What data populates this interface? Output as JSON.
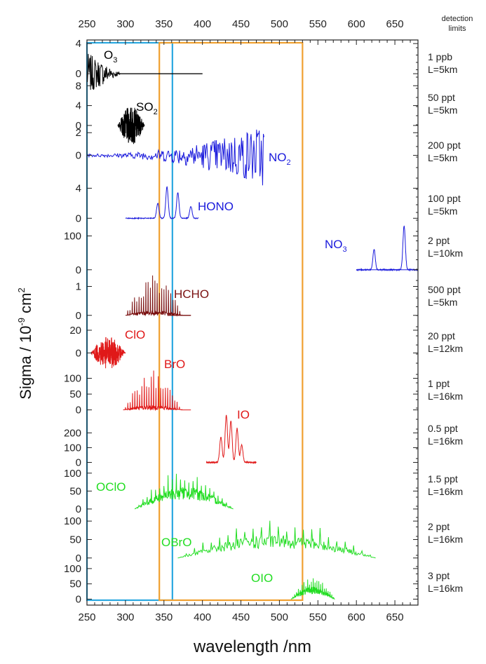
{
  "chart_data": {
    "type": "line",
    "title": "",
    "xlabel": "wavelength /nm",
    "ylabel": "Sigma / 10",
    "ylabel_exp": "-9",
    "ylabel_unit": " cm",
    "ylabel_unit_exp": "2",
    "xlim": [
      250,
      680
    ],
    "xticks": [
      250,
      300,
      350,
      400,
      450,
      500,
      550,
      600,
      650
    ],
    "detection_header": [
      "detection",
      "limits"
    ],
    "boxes": [
      {
        "name": "cyan-window",
        "x": [
          250,
          361
        ],
        "color": "#2aa8e0"
      },
      {
        "name": "orange-window",
        "x": [
          344,
          530
        ],
        "color": "#f0a030"
      }
    ],
    "panels": [
      {
        "id": "o3",
        "label": "O",
        "label_sub": "3",
        "color": "#000000",
        "yticks": [
          4,
          0
        ],
        "ylim": [
          -1.2,
          4.2
        ],
        "x_range": [
          250,
          400
        ],
        "shape": "o3",
        "peak": 2.8,
        "detection": [
          "1 ppb",
          "L=5km"
        ]
      },
      {
        "id": "so2",
        "label": "SO",
        "label_sub": "2",
        "color": "#000000",
        "yticks": [
          8,
          4,
          0
        ],
        "ylim": [
          -1,
          8.6
        ],
        "x_range": [
          290,
          325
        ],
        "shape": "blob",
        "peak": 6.5,
        "detection": [
          "50 ppt",
          "L=5km"
        ]
      },
      {
        "id": "no2",
        "label": "NO",
        "label_sub": "2",
        "color": "#1a1adc",
        "yticks": [
          2,
          0
        ],
        "ylim": [
          -2.5,
          2.2
        ],
        "x_range": [
          250,
          480
        ],
        "shape": "noisy_grow",
        "peak": 4.5,
        "detection": [
          "200 ppt",
          "L=5km"
        ]
      },
      {
        "id": "hono",
        "label": "HONO",
        "label_sub": "",
        "color": "#1a1adc",
        "yticks": [
          4,
          0
        ],
        "ylim": [
          -1,
          4.6
        ],
        "x_range": [
          300,
          395
        ],
        "shape": "peaks",
        "peaks": [
          [
            342,
            2
          ],
          [
            354,
            4.2
          ],
          [
            368,
            3.4
          ],
          [
            385,
            1.6
          ]
        ],
        "detection": [
          "100 ppt",
          "L=5km"
        ]
      },
      {
        "id": "no3",
        "label": "NO",
        "label_sub": "3",
        "color": "#1a1adc",
        "yticks": [
          100,
          0
        ],
        "ylim": [
          -15,
          130
        ],
        "x_range": [
          600,
          680
        ],
        "shape": "peaks",
        "peaks": [
          [
            623,
            60
          ],
          [
            662,
            130
          ]
        ],
        "detection": [
          "2 ppt",
          "L=10km"
        ]
      },
      {
        "id": "hcho",
        "label": "HCHO",
        "label_sub": "",
        "color": "#7a1010",
        "yticks": [
          1,
          0
        ],
        "ylim": [
          -0.2,
          1.4
        ],
        "x_range": [
          300,
          385
        ],
        "shape": "spiky",
        "peak": 1.4,
        "detection": [
          "500 ppt",
          "L=5km"
        ]
      },
      {
        "id": "clo",
        "label": "ClO",
        "label_sub": "",
        "color": "#e01818",
        "yticks": [
          20,
          0
        ],
        "ylim": [
          -14,
          28
        ],
        "x_range": [
          255,
          300
        ],
        "shape": "blob",
        "peak": 24,
        "detection": [
          "20 ppt",
          "L=12km"
        ]
      },
      {
        "id": "bro",
        "label": "BrO",
        "label_sub": "",
        "color": "#e01818",
        "yticks": [
          100,
          50,
          0
        ],
        "ylim": [
          -12,
          130
        ],
        "x_range": [
          297,
          385
        ],
        "shape": "spiky",
        "peak": 125,
        "detection": [
          "1 ppt",
          "L=16km"
        ]
      },
      {
        "id": "io",
        "label": "IO",
        "label_sub": "",
        "color": "#e01818",
        "yticks": [
          200,
          100,
          0
        ],
        "ylim": [
          -12,
          330
        ],
        "x_range": [
          405,
          470
        ],
        "shape": "peaks",
        "peaks": [
          [
            424,
            170
          ],
          [
            431,
            320
          ],
          [
            437,
            280
          ],
          [
            445,
            230
          ],
          [
            451,
            120
          ]
        ],
        "detection": [
          "0.5 ppt",
          "L=16km"
        ]
      },
      {
        "id": "oclo",
        "label": "OClO",
        "label_sub": "",
        "color": "#22dd22",
        "yticks": [
          100,
          50,
          0
        ],
        "ylim": [
          -8,
          125
        ],
        "x_range": [
          312,
          440
        ],
        "shape": "noisy_hump",
        "peak": 115,
        "detection": [
          "1.5 ppt",
          "L=16km"
        ]
      },
      {
        "id": "obro",
        "label": "OBrO",
        "label_sub": "",
        "color": "#22dd22",
        "yticks": [
          100,
          50,
          0
        ],
        "ylim": [
          -8,
          125
        ],
        "x_range": [
          368,
          625
        ],
        "shape": "noisy_hump",
        "peak": 115,
        "detection": [
          "2 ppt",
          "L=16km"
        ]
      },
      {
        "id": "oio",
        "label": "OIO",
        "label_sub": "",
        "color": "#22dd22",
        "yticks": [
          100,
          50,
          0
        ],
        "ylim": [
          -8,
          125
        ],
        "x_range": [
          515,
          572
        ],
        "shape": "noisy_hump",
        "peak": 75,
        "detection": [
          "3 ppt",
          "L=16km"
        ]
      }
    ]
  }
}
